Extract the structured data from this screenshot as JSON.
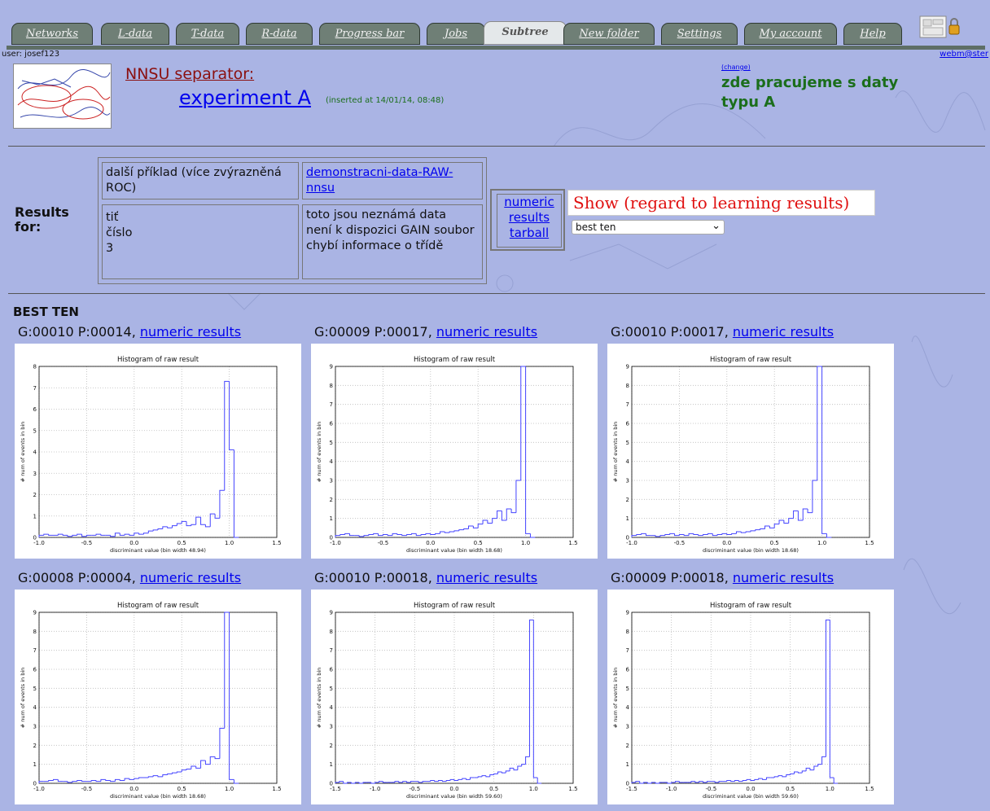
{
  "tabs": [
    {
      "label": "Networks",
      "active": false
    },
    {
      "label": "L-data",
      "active": false
    },
    {
      "label": "T-data",
      "active": false
    },
    {
      "label": "R-data",
      "active": false
    },
    {
      "label": "Progress bar",
      "active": false
    },
    {
      "label": "Jobs",
      "active": false
    },
    {
      "label": "Subtree",
      "active": true
    },
    {
      "label": "New folder",
      "active": false
    },
    {
      "label": "Settings",
      "active": false
    },
    {
      "label": "My account",
      "active": false
    },
    {
      "label": "Help",
      "active": false
    }
  ],
  "header": {
    "user": "user: josef123",
    "webmaster": "webm@ster",
    "separator_label": "NNSU separator:",
    "experiment": "experiment A",
    "inserted": "(inserted at 14/01/14, 08:48)",
    "change": "(change)",
    "note": "zde pracujeme s daty typu A"
  },
  "results": {
    "label": "Results for:",
    "cell_1": "další příklad (více zvýrazněná ROC)",
    "cell_2": "demonstracni-data-RAW-nnsu",
    "cell_3": "tiť\nčíslo\n3",
    "cell_4": "toto jsou neznámá data\nnení k dispozici GAIN soubor\nchybí informace o třídě",
    "numeric_link": "numeric results tarball",
    "show_label": "Show (regard to learning results)",
    "select_value": "best ten"
  },
  "best": {
    "title": "BEST TEN",
    "link_text": "numeric results",
    "items": [
      {
        "label": "G:00010 P:00014, "
      },
      {
        "label": "G:00009 P:00017, "
      },
      {
        "label": "G:00010 P:00017, "
      },
      {
        "label": "G:00008 P:00004, "
      },
      {
        "label": "G:00010 P:00018, "
      },
      {
        "label": "G:00009 P:00018, "
      }
    ]
  },
  "chart_data": [
    {
      "type": "line",
      "step": true,
      "title": "Histogram of raw result",
      "xlabel": "discriminant value (bin width 48.94)",
      "ylabel": "# num of events in bin",
      "xlim": [
        -1.0,
        1.5
      ],
      "ylim": [
        0,
        8
      ],
      "xticks": [
        "-1.0",
        "-0.5",
        "0.0",
        "0.5",
        "1.0",
        "1.5"
      ],
      "yticks": [
        "0",
        "1",
        "2",
        "3",
        "4",
        "5",
        "6",
        "7",
        "8"
      ],
      "grid": true,
      "color": "#4444ff",
      "x": [
        -1.0,
        -0.95,
        -0.9,
        -0.85,
        -0.8,
        -0.75,
        -0.7,
        -0.65,
        -0.6,
        -0.55,
        -0.5,
        -0.45,
        -0.4,
        -0.35,
        -0.3,
        -0.25,
        -0.2,
        -0.15,
        -0.1,
        -0.05,
        0.0,
        0.05,
        0.1,
        0.15,
        0.2,
        0.25,
        0.3,
        0.35,
        0.4,
        0.45,
        0.5,
        0.55,
        0.6,
        0.65,
        0.7,
        0.75,
        0.8,
        0.85,
        0.9,
        0.95,
        1.0,
        1.05
      ],
      "values": [
        0.1,
        0.15,
        0.1,
        0.1,
        0.15,
        0.1,
        0.05,
        0.1,
        0.15,
        0.05,
        0.1,
        0.1,
        0.15,
        0.1,
        0.1,
        0.05,
        0.2,
        0.1,
        0.15,
        0.1,
        0.2,
        0.15,
        0.2,
        0.3,
        0.35,
        0.4,
        0.5,
        0.45,
        0.55,
        0.65,
        0.75,
        0.55,
        0.6,
        0.95,
        0.6,
        0.5,
        1.1,
        0.9,
        2.2,
        7.3,
        4.1,
        0
      ]
    },
    {
      "type": "line",
      "step": true,
      "title": "Histogram of raw result",
      "xlabel": "discriminant value (bin width 18.68)",
      "ylabel": "# num of events in bin",
      "xlim": [
        -1.0,
        1.5
      ],
      "ylim": [
        0,
        9
      ],
      "xticks": [
        "-1.0",
        "-0.5",
        "0.0",
        "0.5",
        "1.0",
        "1.5"
      ],
      "yticks": [
        "0",
        "1",
        "2",
        "3",
        "4",
        "5",
        "6",
        "7",
        "8",
        "9"
      ],
      "grid": true,
      "color": "#4444ff",
      "x": [
        -1.0,
        -0.95,
        -0.9,
        -0.85,
        -0.8,
        -0.75,
        -0.7,
        -0.65,
        -0.6,
        -0.55,
        -0.5,
        -0.45,
        -0.4,
        -0.35,
        -0.3,
        -0.25,
        -0.2,
        -0.15,
        -0.1,
        -0.05,
        0.0,
        0.05,
        0.1,
        0.15,
        0.2,
        0.25,
        0.3,
        0.35,
        0.4,
        0.45,
        0.5,
        0.55,
        0.6,
        0.65,
        0.7,
        0.75,
        0.8,
        0.85,
        0.9,
        0.95,
        1.0,
        1.05
      ],
      "values": [
        0.1,
        0.15,
        0.2,
        0.1,
        0.1,
        0.05,
        0.1,
        0.15,
        0.2,
        0.1,
        0.15,
        0.1,
        0.2,
        0.15,
        0.1,
        0.15,
        0.2,
        0.1,
        0.15,
        0.2,
        0.15,
        0.2,
        0.3,
        0.25,
        0.3,
        0.35,
        0.4,
        0.45,
        0.6,
        0.5,
        0.7,
        0.9,
        0.75,
        1.0,
        1.4,
        0.9,
        1.5,
        1.3,
        3.0,
        9.0,
        0.2,
        0
      ]
    },
    {
      "type": "line",
      "step": true,
      "title": "Histogram of raw result",
      "xlabel": "discriminant value (bin width 18.68)",
      "ylabel": "# num of events in bin",
      "xlim": [
        -1.0,
        1.5
      ],
      "ylim": [
        0,
        9
      ],
      "xticks": [
        "-1.0",
        "-0.5",
        "0.0",
        "0.5",
        "1.0",
        "1.5"
      ],
      "yticks": [
        "0",
        "1",
        "2",
        "3",
        "4",
        "5",
        "6",
        "7",
        "8",
        "9"
      ],
      "grid": true,
      "color": "#4444ff",
      "x": [
        -1.0,
        -0.95,
        -0.9,
        -0.85,
        -0.8,
        -0.75,
        -0.7,
        -0.65,
        -0.6,
        -0.55,
        -0.5,
        -0.45,
        -0.4,
        -0.35,
        -0.3,
        -0.25,
        -0.2,
        -0.15,
        -0.1,
        -0.05,
        0.0,
        0.05,
        0.1,
        0.15,
        0.2,
        0.25,
        0.3,
        0.35,
        0.4,
        0.45,
        0.5,
        0.55,
        0.6,
        0.65,
        0.7,
        0.75,
        0.8,
        0.85,
        0.9,
        0.95,
        1.0,
        1.05
      ],
      "values": [
        0.1,
        0.15,
        0.2,
        0.1,
        0.1,
        0.05,
        0.1,
        0.15,
        0.2,
        0.1,
        0.15,
        0.1,
        0.2,
        0.15,
        0.1,
        0.15,
        0.2,
        0.1,
        0.15,
        0.2,
        0.15,
        0.2,
        0.3,
        0.25,
        0.3,
        0.35,
        0.4,
        0.45,
        0.6,
        0.5,
        0.7,
        0.9,
        0.75,
        1.0,
        1.4,
        0.9,
        1.5,
        1.3,
        3.0,
        9.0,
        0.2,
        0
      ]
    },
    {
      "type": "line",
      "step": true,
      "title": "Histogram of raw result",
      "xlabel": "discriminant value (bin width 18.68)",
      "ylabel": "# num of events in bin",
      "xlim": [
        -1.0,
        1.5
      ],
      "ylim": [
        0,
        9
      ],
      "xticks": [
        "-1.0",
        "-0.5",
        "0.0",
        "0.5",
        "1.0",
        "1.5"
      ],
      "yticks": [
        "0",
        "1",
        "2",
        "3",
        "4",
        "5",
        "6",
        "7",
        "8",
        "9"
      ],
      "grid": true,
      "color": "#4444ff",
      "x": [
        -1.0,
        -0.95,
        -0.9,
        -0.85,
        -0.8,
        -0.75,
        -0.7,
        -0.65,
        -0.6,
        -0.55,
        -0.5,
        -0.45,
        -0.4,
        -0.35,
        -0.3,
        -0.25,
        -0.2,
        -0.15,
        -0.1,
        -0.05,
        0.0,
        0.05,
        0.1,
        0.15,
        0.2,
        0.25,
        0.3,
        0.35,
        0.4,
        0.45,
        0.5,
        0.55,
        0.6,
        0.65,
        0.7,
        0.75,
        0.8,
        0.85,
        0.9,
        0.95,
        1.0,
        1.05
      ],
      "values": [
        0.1,
        0.1,
        0.15,
        0.2,
        0.1,
        0.1,
        0.05,
        0.1,
        0.15,
        0.1,
        0.1,
        0.15,
        0.1,
        0.2,
        0.15,
        0.1,
        0.2,
        0.15,
        0.25,
        0.2,
        0.25,
        0.3,
        0.3,
        0.35,
        0.4,
        0.35,
        0.45,
        0.5,
        0.55,
        0.6,
        0.7,
        0.75,
        0.9,
        0.8,
        1.2,
        1.0,
        1.4,
        1.3,
        2.9,
        9.0,
        0.2,
        0
      ]
    },
    {
      "type": "line",
      "step": true,
      "title": "Histogram of raw result",
      "xlabel": "discriminant value (bin width 59.60)",
      "ylabel": "# num of events in bin",
      "xlim": [
        -1.5,
        1.5
      ],
      "ylim": [
        0,
        9
      ],
      "xticks": [
        "-1.5",
        "-1.0",
        "-0.5",
        "0.0",
        "0.5",
        "1.0",
        "1.5"
      ],
      "yticks": [
        "0",
        "1",
        "2",
        "3",
        "4",
        "5",
        "6",
        "7",
        "8",
        "9"
      ],
      "grid": true,
      "color": "#4444ff",
      "x": [
        -1.5,
        -1.45,
        -1.4,
        -1.35,
        -1.3,
        -1.25,
        -1.2,
        -1.15,
        -1.1,
        -1.05,
        -1.0,
        -0.95,
        -0.9,
        -0.85,
        -0.8,
        -0.75,
        -0.7,
        -0.65,
        -0.6,
        -0.55,
        -0.5,
        -0.45,
        -0.4,
        -0.35,
        -0.3,
        -0.25,
        -0.2,
        -0.15,
        -0.1,
        -0.05,
        0.0,
        0.05,
        0.1,
        0.15,
        0.2,
        0.25,
        0.3,
        0.35,
        0.4,
        0.45,
        0.5,
        0.55,
        0.6,
        0.65,
        0.7,
        0.75,
        0.8,
        0.85,
        0.9,
        0.95,
        1.0,
        1.05
      ],
      "values": [
        0.05,
        0.1,
        0.0,
        0.05,
        0.0,
        0.05,
        0.0,
        0.05,
        0.05,
        0.0,
        0.05,
        0.1,
        0.05,
        0.05,
        0.05,
        0.1,
        0.05,
        0.1,
        0.05,
        0.1,
        0.1,
        0.05,
        0.1,
        0.1,
        0.15,
        0.1,
        0.15,
        0.1,
        0.15,
        0.2,
        0.15,
        0.2,
        0.25,
        0.2,
        0.3,
        0.3,
        0.35,
        0.4,
        0.35,
        0.45,
        0.5,
        0.6,
        0.55,
        0.65,
        0.8,
        0.7,
        0.9,
        1.0,
        1.4,
        8.6,
        0.3,
        0
      ]
    },
    {
      "type": "line",
      "step": true,
      "title": "Histogram of raw result",
      "xlabel": "discriminant value (bin width 59.60)",
      "ylabel": "# num of events in bin",
      "xlim": [
        -1.5,
        1.5
      ],
      "ylim": [
        0,
        9
      ],
      "xticks": [
        "-1.5",
        "-1.0",
        "-0.5",
        "0.0",
        "0.5",
        "1.0",
        "1.5"
      ],
      "yticks": [
        "0",
        "1",
        "2",
        "3",
        "4",
        "5",
        "6",
        "7",
        "8",
        "9"
      ],
      "grid": true,
      "color": "#4444ff",
      "x": [
        -1.5,
        -1.45,
        -1.4,
        -1.35,
        -1.3,
        -1.25,
        -1.2,
        -1.15,
        -1.1,
        -1.05,
        -1.0,
        -0.95,
        -0.9,
        -0.85,
        -0.8,
        -0.75,
        -0.7,
        -0.65,
        -0.6,
        -0.55,
        -0.5,
        -0.45,
        -0.4,
        -0.35,
        -0.3,
        -0.25,
        -0.2,
        -0.15,
        -0.1,
        -0.05,
        0.0,
        0.05,
        0.1,
        0.15,
        0.2,
        0.25,
        0.3,
        0.35,
        0.4,
        0.45,
        0.5,
        0.55,
        0.6,
        0.65,
        0.7,
        0.75,
        0.8,
        0.85,
        0.9,
        0.95,
        1.0,
        1.05
      ],
      "values": [
        0.05,
        0.1,
        0.0,
        0.05,
        0.0,
        0.05,
        0.0,
        0.05,
        0.05,
        0.0,
        0.05,
        0.1,
        0.05,
        0.05,
        0.05,
        0.1,
        0.05,
        0.1,
        0.05,
        0.1,
        0.1,
        0.05,
        0.1,
        0.1,
        0.15,
        0.1,
        0.15,
        0.1,
        0.15,
        0.2,
        0.15,
        0.2,
        0.25,
        0.2,
        0.3,
        0.3,
        0.35,
        0.4,
        0.35,
        0.45,
        0.5,
        0.6,
        0.55,
        0.65,
        0.8,
        0.7,
        0.9,
        1.0,
        1.4,
        8.6,
        0.3,
        0
      ]
    }
  ]
}
